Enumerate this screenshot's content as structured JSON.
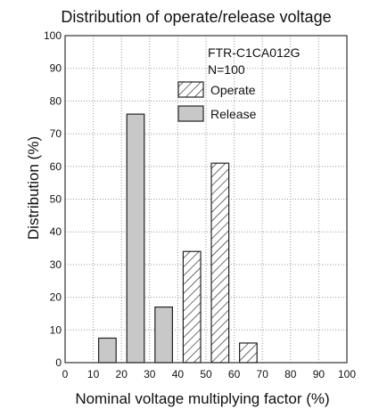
{
  "chart_data": {
    "type": "bar",
    "title": "Distribution of operate/release voltage",
    "xlabel": "Nominal voltage multiplying factor (%)",
    "ylabel": "Distribution (%)",
    "xlim": [
      0,
      100
    ],
    "ylim": [
      0,
      100
    ],
    "x_ticks": [
      0,
      10,
      20,
      30,
      40,
      50,
      60,
      70,
      80,
      90,
      100
    ],
    "y_ticks": [
      0,
      10,
      20,
      30,
      40,
      50,
      60,
      70,
      80,
      90,
      100
    ],
    "grid": true,
    "legend_position": "top-right",
    "annotations": [
      "FTR-C1CA012G",
      "N=100"
    ],
    "series": [
      {
        "name": "Operate",
        "fill": "hatched",
        "color": "#ffffff",
        "bars": [
          {
            "x_start": 40,
            "x_end": 50,
            "value": 34
          },
          {
            "x_start": 50,
            "x_end": 60,
            "value": 61
          },
          {
            "x_start": 60,
            "x_end": 70,
            "value": 6
          }
        ]
      },
      {
        "name": "Release",
        "fill": "solid",
        "color": "#c8c8c8",
        "bars": [
          {
            "x_start": 10,
            "x_end": 20,
            "value": 7.5
          },
          {
            "x_start": 20,
            "x_end": 30,
            "value": 76
          },
          {
            "x_start": 30,
            "x_end": 40,
            "value": 17
          }
        ]
      }
    ]
  }
}
